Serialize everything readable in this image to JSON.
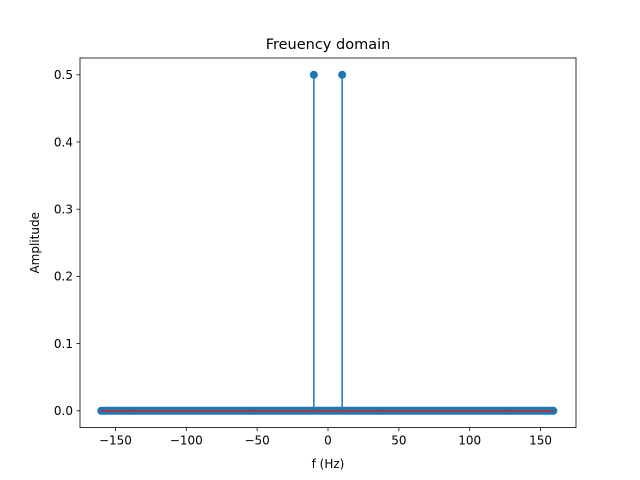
{
  "chart_data": {
    "type": "stem",
    "title": "Freuency domain",
    "xlabel": "f (Hz)",
    "ylabel": "Amplitude",
    "xlim": [
      -175,
      175
    ],
    "ylim": [
      -0.025,
      0.525
    ],
    "x_ticks": [
      -150,
      -100,
      -50,
      0,
      50,
      100,
      150
    ],
    "x_tick_labels": [
      "−150",
      "−100",
      "−50",
      "0",
      "50",
      "100",
      "150"
    ],
    "y_ticks": [
      0.0,
      0.1,
      0.2,
      0.3,
      0.4,
      0.5
    ],
    "y_tick_labels": [
      "0.0",
      "0.1",
      "0.2",
      "0.3",
      "0.4",
      "0.5"
    ],
    "grid": false,
    "x_range": [
      -160,
      159
    ],
    "sample_step": 1,
    "points": [
      {
        "x": -10,
        "y": 0.5
      },
      {
        "x": 10,
        "y": 0.5
      }
    ],
    "default_y": 0,
    "colors": {
      "stem": "#1f77b4",
      "marker": "#1f77b4",
      "baseline": "#d62728"
    }
  }
}
